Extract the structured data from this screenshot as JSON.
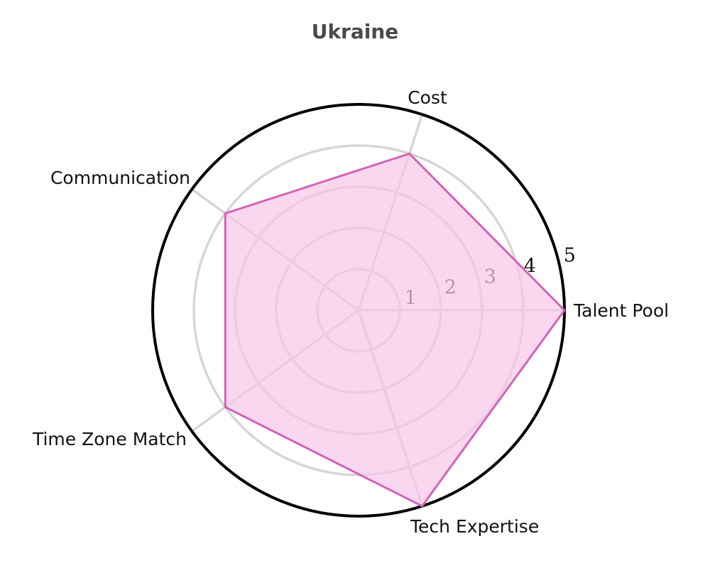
{
  "chart_data": {
    "type": "radar",
    "title": "Ukraine",
    "axes": [
      "Talent Pool",
      "Cost",
      "Communication",
      "Time Zone Match",
      "Tech Expertise"
    ],
    "radial_ticks": [
      "1",
      "2",
      "3",
      "4",
      "5"
    ],
    "rlim": [
      0,
      5
    ],
    "grid": true,
    "legend": "none",
    "series": [
      {
        "values": [
          5,
          4,
          4,
          4,
          5
        ]
      }
    ],
    "colors": {
      "fill": "#f7c6e8",
      "line": "#d264b6",
      "grid": "#d6d6d6",
      "outer_ring": "#000000",
      "tick_inner": "#b496b4",
      "tick_outer": "#111111"
    }
  }
}
